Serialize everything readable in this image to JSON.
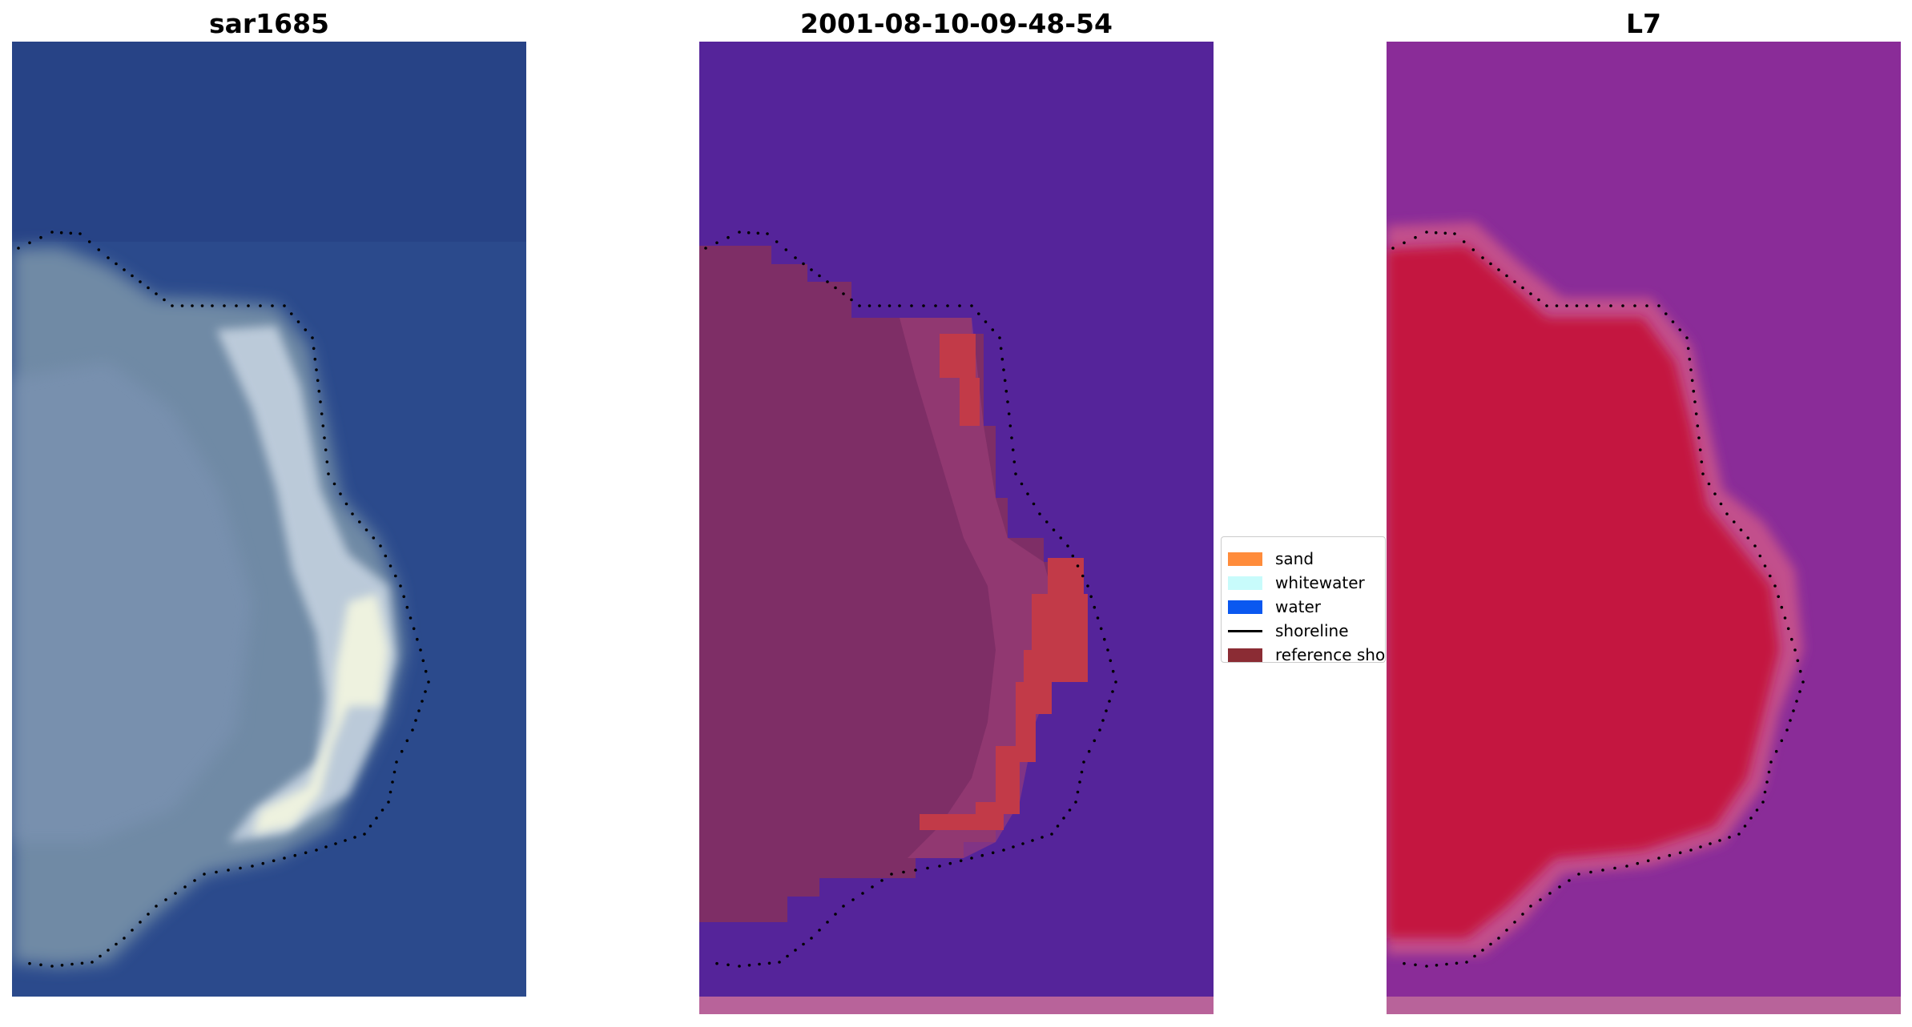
{
  "panels": [
    {
      "title": "sar1685"
    },
    {
      "title": "2001-08-10-09-48-54"
    },
    {
      "title": "L7"
    }
  ],
  "legend": {
    "items": [
      {
        "label": "sand",
        "color": "#ff8c3b",
        "kind": "patch"
      },
      {
        "label": "whitewater",
        "color": "#c8fbfb",
        "kind": "patch"
      },
      {
        "label": "water",
        "color": "#0a58f0",
        "kind": "patch"
      },
      {
        "label": "shoreline",
        "color": "#000000",
        "kind": "line"
      },
      {
        "label": "reference shoreline",
        "color": "#8b2c34",
        "kind": "patch"
      }
    ]
  },
  "colors": {
    "rgb_water": "#2b4a8c",
    "rgb_land": "#6f8aa5",
    "rgb_whitewater": "#e9eedd",
    "class_water": "#55249a",
    "class_land": "#7e2e66",
    "class_bright": "#c23a48",
    "class_strip": "#b8639a",
    "index_water": "#8a2c98",
    "index_land": "#c4173f",
    "index_strip": "#b8639a"
  }
}
